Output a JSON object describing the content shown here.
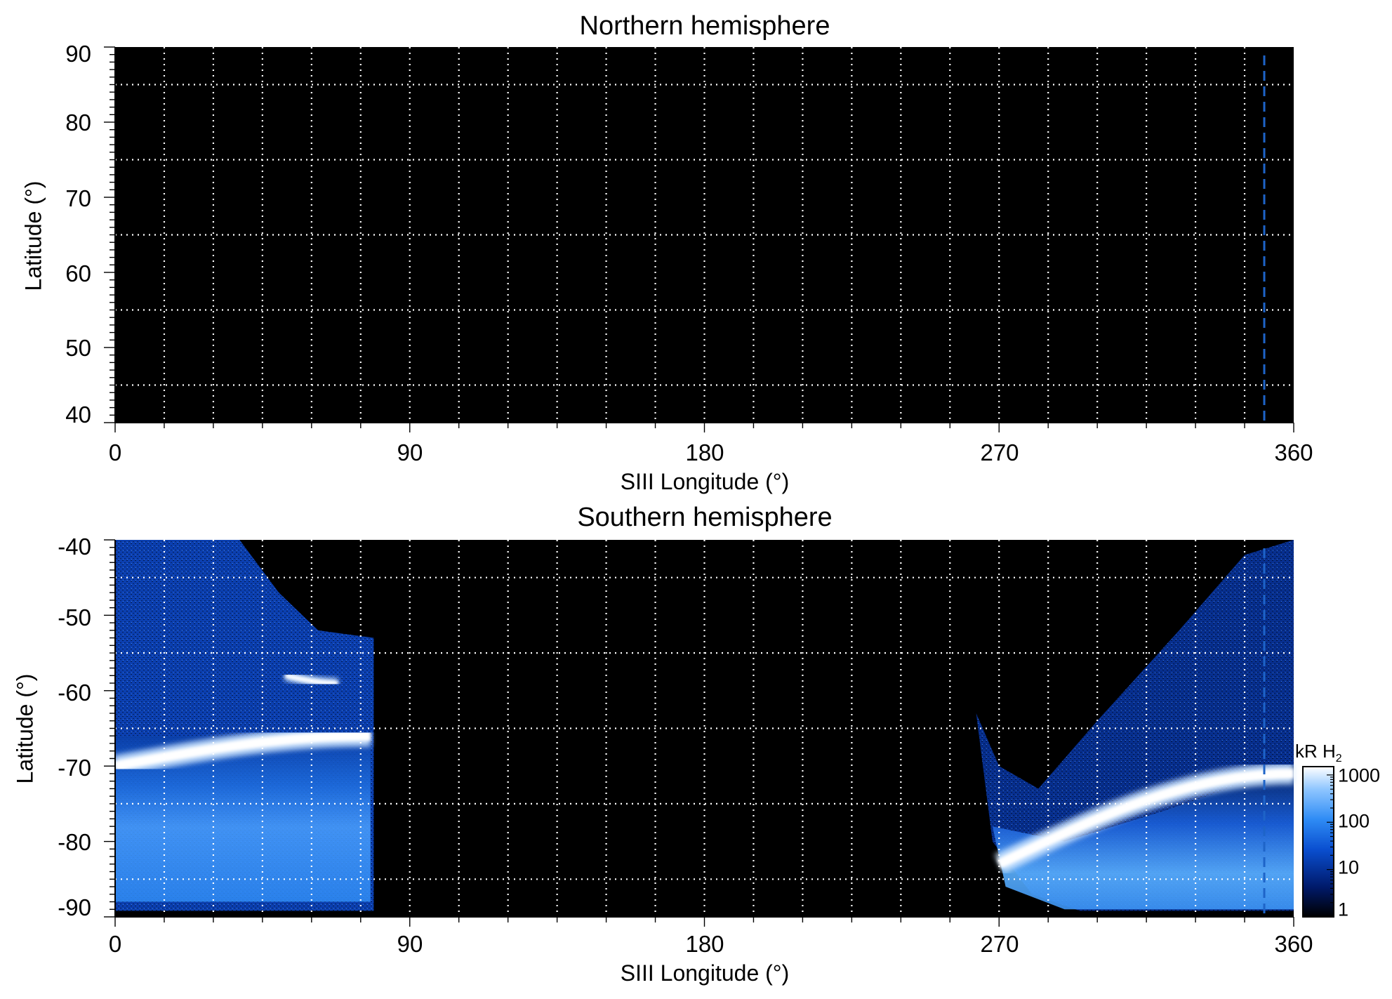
{
  "chart_data": [
    {
      "type": "heatmap",
      "title": "Northern hemisphere",
      "xlabel": "SIII Longitude (°)",
      "ylabel": "Latitude (°)",
      "xlim": [
        0,
        360
      ],
      "ylim": [
        40,
        90
      ],
      "x_ticks": [
        "0",
        "90",
        "180",
        "270",
        "360"
      ],
      "y_ticks": [
        "40",
        "50",
        "60",
        "70",
        "80",
        "90"
      ],
      "x_tick_values": [
        0,
        90,
        180,
        270,
        360
      ],
      "y_tick_values": [
        40,
        50,
        60,
        70,
        80,
        90
      ],
      "grid": true,
      "grid_x_step": 15,
      "grid_y_step": 10,
      "grid_color": "#ffffff",
      "background": "#000000",
      "reference_line": {
        "longitude": 351,
        "style": "dashed",
        "color": "#1e64c8"
      },
      "data_description": "no emission recorded"
    },
    {
      "type": "heatmap",
      "title": "Southern hemisphere",
      "xlabel": "SIII Longitude (°)",
      "ylabel": "Latitude (°)",
      "xlim": [
        0,
        360
      ],
      "ylim": [
        -90,
        -40
      ],
      "x_ticks": [
        "0",
        "90",
        "180",
        "270",
        "360"
      ],
      "y_ticks": [
        "-40",
        "-50",
        "-60",
        "-70",
        "-80",
        "-90"
      ],
      "x_tick_values": [
        0,
        90,
        180,
        270,
        360
      ],
      "y_tick_values": [
        -40,
        -50,
        -60,
        -70,
        -80,
        -90
      ],
      "grid": true,
      "grid_x_step": 15,
      "grid_y_step": 10,
      "grid_color": "#ffffff",
      "background": "#000000",
      "reference_line": {
        "longitude": 351,
        "style": "dashed",
        "color": "#1e64c8"
      },
      "colorbar": {
        "title": "kR H",
        "title_subscript": "2",
        "scale": "log",
        "ticks": [
          "1000",
          "100",
          "10",
          "1"
        ],
        "tick_values": [
          1000,
          100,
          10,
          1
        ],
        "range": [
          1,
          1500
        ],
        "colors": [
          "#000000",
          "#001a6b",
          "#0a4fd0",
          "#2f8cf5",
          "#8fc6ff",
          "#ffffff"
        ]
      },
      "coverage_regions": [
        {
          "lon_range": [
            0,
            79
          ],
          "lat_range": [
            -90,
            -40
          ]
        },
        {
          "lon_range": [
            263,
            360
          ],
          "lat_range": [
            -90,
            -40
          ]
        }
      ],
      "features": [
        {
          "name": "main oval west",
          "lon": [
            0,
            78
          ],
          "lat": [
            -70,
            -66
          ],
          "intensity_kR": 1000
        },
        {
          "name": "spot",
          "lon": [
            52,
            68
          ],
          "lat": [
            -58,
            -59
          ],
          "intensity_kR": 1000
        },
        {
          "name": "main oval east",
          "lon": [
            270,
            360
          ],
          "lat": [
            -83,
            -71
          ],
          "intensity_kR": 1000
        }
      ]
    }
  ]
}
